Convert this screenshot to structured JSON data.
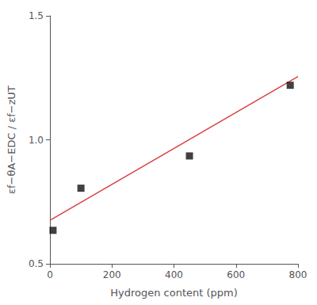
{
  "chart_data": {
    "type": "scatter",
    "xlabel": "Hydrogen content (ppm)",
    "ylabel": "εf−θA−EDC / εf−zUT",
    "series": [
      {
        "type": "line",
        "color": "#d94040",
        "x": [
          0,
          800
        ],
        "values": [
          0.675,
          1.255
        ]
      },
      {
        "type": "scatter",
        "marker": "square",
        "color": "#111111",
        "x": [
          10,
          100,
          450,
          775
        ],
        "values": [
          0.635,
          0.805,
          0.935,
          1.22
        ]
      }
    ],
    "xlim": [
      0,
      800
    ],
    "ylim": [
      0.5,
      1.5
    ],
    "xticks": [
      0,
      200,
      400,
      600,
      800
    ],
    "yticks": [
      {
        "value": 0.5,
        "label": "0.5"
      },
      {
        "value": 1,
        "label": "1.0"
      },
      {
        "value": 1.5,
        "label": "1.5"
      }
    ],
    "grid": false
  }
}
